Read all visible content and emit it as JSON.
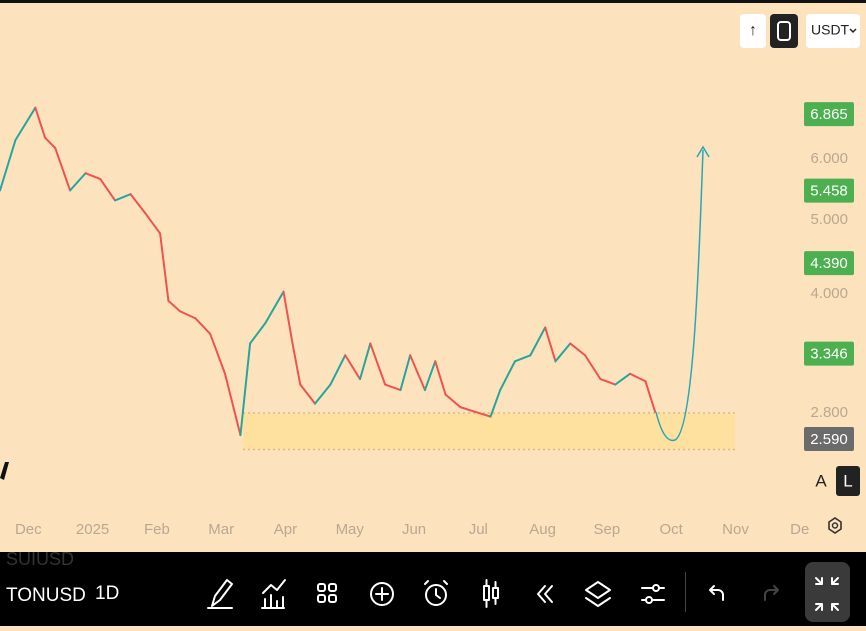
{
  "top_bar": {
    "buttons": [
      "↑"
    ],
    "currency": "USDT"
  },
  "chart_data": {
    "type": "line",
    "x": [
      -0.44,
      -0.2,
      0.11,
      0.26,
      0.42,
      0.65,
      0.89,
      1.12,
      1.35,
      1.59,
      1.82,
      2.05,
      2.18,
      2.36,
      2.6,
      2.83,
      3.06,
      3.3,
      3.45,
      3.69,
      3.97,
      4.11,
      4.23,
      4.46,
      4.7,
      4.93,
      5.16,
      5.32,
      5.55,
      5.79,
      5.94,
      6.17,
      6.33,
      6.49,
      6.72,
      6.95,
      7.19,
      7.34,
      7.57,
      7.81,
      8.04,
      8.2,
      8.43,
      8.66,
      8.9,
      9.13,
      9.36,
      9.6,
      9.75
    ],
    "series": [
      {
        "up_color": "#26a69a",
        "down_color": "#ef5350",
        "values": [
          5.46,
          6.35,
          7.0,
          6.4,
          6.2,
          5.46,
          5.75,
          5.65,
          5.3,
          5.4,
          5.1,
          4.8,
          3.92,
          3.8,
          3.72,
          3.55,
          3.15,
          2.62,
          3.45,
          3.67,
          4.03,
          3.45,
          3.05,
          2.88,
          3.05,
          3.33,
          3.1,
          3.45,
          3.05,
          3.0,
          3.33,
          3.0,
          3.27,
          2.96,
          2.85,
          2.81,
          2.77,
          3.0,
          3.27,
          3.33,
          3.62,
          3.27,
          3.45,
          3.33,
          3.1,
          3.05,
          3.15,
          3.08,
          2.81
        ]
      }
    ],
    "xlim": [
      -0.44,
      13.03
    ],
    "xticks": [
      {
        "value": 0,
        "label": "Dec"
      },
      {
        "value": 1,
        "label": "2025"
      },
      {
        "value": 2,
        "label": "Feb"
      },
      {
        "value": 3,
        "label": "Mar"
      },
      {
        "value": 4,
        "label": "Apr"
      },
      {
        "value": 5,
        "label": "May"
      },
      {
        "value": 6,
        "label": "Jun"
      },
      {
        "value": 7,
        "label": "Jul"
      },
      {
        "value": 8,
        "label": "Aug"
      },
      {
        "value": 9,
        "label": "Sep"
      },
      {
        "value": 10,
        "label": "Oct"
      },
      {
        "value": 11,
        "label": "Nov"
      },
      {
        "value": 12,
        "label": "De"
      }
    ],
    "yscale": "log",
    "ylim": [
      2.36,
      9.67
    ],
    "yticks": [
      {
        "value": 6,
        "label": "6.000"
      },
      {
        "value": 5,
        "label": "5.000"
      },
      {
        "value": 4,
        "label": "4.000"
      },
      {
        "value": 2.8,
        "label": "2.800"
      }
    ],
    "price_labels": [
      {
        "value": 6.865,
        "label": "6.865",
        "color": "#4caf50"
      },
      {
        "value": 5.458,
        "label": "5.458",
        "color": "#4caf50"
      },
      {
        "value": 4.39,
        "label": "4.390",
        "color": "#4caf50"
      },
      {
        "value": 3.346,
        "label": "3.346",
        "color": "#4caf50"
      },
      {
        "value": 2.59,
        "label": "2.590",
        "color": "#6b6b6b"
      }
    ],
    "zone": {
      "range": [
        2.51,
        2.8
      ],
      "color": "#ffe09a"
    },
    "scale_buttons": [
      "A",
      "L"
    ]
  },
  "bottom_bar": {
    "symbols": [
      "SUIUSD",
      "TONUSD"
    ],
    "interval": "1D"
  }
}
